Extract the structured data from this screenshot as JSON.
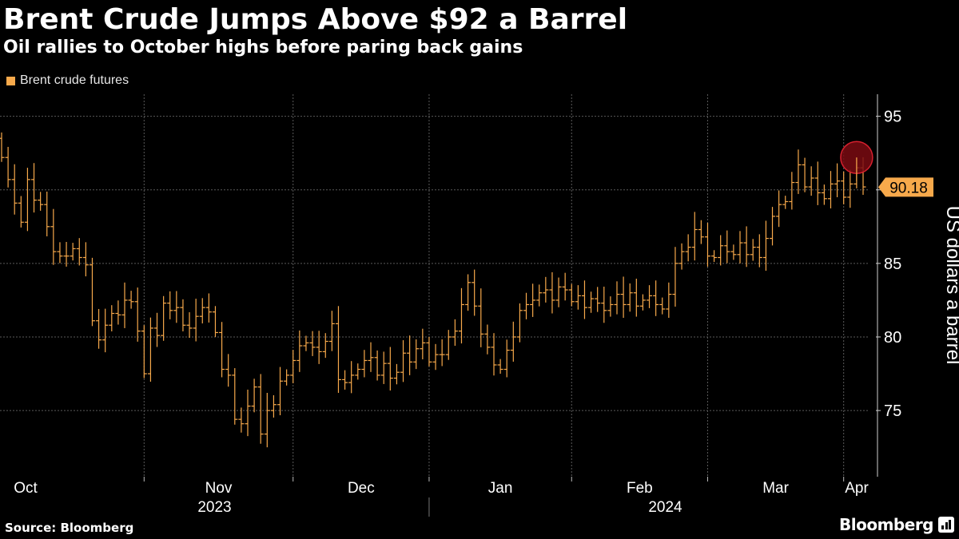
{
  "header": {
    "title": "Brent Crude Jumps Above $92 a Barrel",
    "subtitle": "Oil rallies to October highs before paring back gains"
  },
  "footer": {
    "source": "Source: Bloomberg",
    "brand": "Bloomberg",
    "brand_icon": "bloomberg-terminal-icon"
  },
  "colors": {
    "background": "#000000",
    "series": "#f7a94b",
    "highlight_fill": "#7a0a12",
    "highlight_stroke": "#d6202e",
    "grid": "#5a5a5a",
    "text": "#ffffff"
  },
  "chart_data": {
    "type": "ohlc",
    "legend": "Brent crude futures",
    "legend_position": "top-left",
    "ylabel": "US dollars a barrel",
    "ylim": [
      70.5,
      96.5
    ],
    "yticks": [
      75,
      80,
      85,
      90,
      95
    ],
    "grid": true,
    "last_value_label": "90.18",
    "last_value": 90.18,
    "months": [
      {
        "label": "Oct",
        "index": 0
      },
      {
        "label": "Nov",
        "index": 22
      },
      {
        "label": "Dec",
        "index": 45
      },
      {
        "label": "Jan",
        "index": 66
      },
      {
        "label": "Feb",
        "index": 88
      },
      {
        "label": "Mar",
        "index": 109
      },
      {
        "label": "Apr",
        "index": 130
      }
    ],
    "years": [
      {
        "label": "2023",
        "index": 22
      },
      {
        "label": "2024",
        "index": 88
      }
    ],
    "highlight": {
      "index": 132,
      "value": 92.2
    },
    "closes": [
      92.2,
      90.7,
      89.1,
      87.8,
      90.7,
      89.3,
      89.0,
      87.5,
      85.8,
      85.5,
      85.5,
      86.0,
      85.4,
      84.9,
      81.1,
      79.8,
      80.8,
      81.6,
      81.5,
      82.5,
      82.4,
      80.4,
      77.5,
      80.6,
      80.1,
      82.3,
      81.8,
      82.0,
      80.8,
      80.6,
      81.4,
      82.0,
      81.7,
      80.3,
      77.8,
      77.4,
      74.4,
      74.1,
      75.3,
      76.6,
      73.4,
      75.0,
      75.4,
      77.0,
      77.4,
      78.4,
      79.4,
      79.6,
      79.3,
      79.0,
      79.7,
      80.9,
      77.1,
      76.9,
      77.4,
      77.8,
      78.4,
      78.6,
      77.4,
      78.2,
      77.2,
      77.6,
      78.9,
      78.3,
      79.2,
      79.6,
      78.3,
      78.8,
      78.8,
      80.0,
      80.4,
      82.2,
      83.7,
      82.1,
      80.2,
      79.3,
      78.1,
      77.8,
      79.1,
      80.0,
      81.8,
      82.2,
      82.5,
      83.0,
      83.2,
      82.5,
      83.4,
      83.2,
      82.4,
      82.8,
      82.0,
      82.6,
      82.3,
      81.8,
      82.2,
      82.9,
      82.2,
      83.0,
      82.1,
      82.5,
      82.8,
      82.2,
      81.9,
      82.9,
      85.0,
      85.8,
      86.1,
      87.3,
      86.8,
      85.5,
      85.4,
      86.2,
      85.8,
      85.6,
      86.4,
      85.6,
      86.1,
      85.4,
      86.7,
      88.2,
      89.0,
      89.2,
      90.5,
      91.7,
      90.2,
      90.8,
      89.8,
      89.4,
      90.4,
      90.6,
      89.5,
      90.4,
      91.5,
      90.2
    ]
  }
}
